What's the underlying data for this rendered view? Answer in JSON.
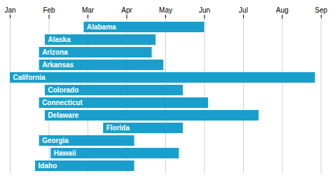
{
  "chart_data": {
    "type": "bar",
    "orientation": "horizontal",
    "categories": [
      "Alabama",
      "Alaska",
      "Arizona",
      "Arkansas",
      "California",
      "Colorado",
      "Connecticut",
      "Delaware",
      "Florida",
      "Georgia",
      "Hawaii",
      "Idaho"
    ],
    "starts": [
      2.9,
      1.9,
      1.75,
      1.75,
      1.0,
      1.9,
      1.75,
      1.9,
      3.4,
      1.75,
      2.05,
      1.65
    ],
    "ends": [
      6.0,
      4.75,
      4.65,
      4.95,
      8.85,
      5.45,
      6.1,
      7.4,
      5.45,
      4.2,
      5.35,
      4.2
    ],
    "color": "#1a9fcc",
    "xlim": [
      1,
      9
    ],
    "xticks": [
      {
        "value": 1,
        "label": "Jan"
      },
      {
        "value": 2,
        "label": "Feb"
      },
      {
        "value": 3,
        "label": "Mar"
      },
      {
        "value": 4,
        "label": "Apr"
      },
      {
        "value": 5,
        "label": "May"
      },
      {
        "value": 6,
        "label": "Jun"
      },
      {
        "value": 7,
        "label": "Jul"
      },
      {
        "value": 8,
        "label": "Aug"
      },
      {
        "value": 9,
        "label": "Sep"
      }
    ],
    "grid": true,
    "tick_labels": "x"
  }
}
